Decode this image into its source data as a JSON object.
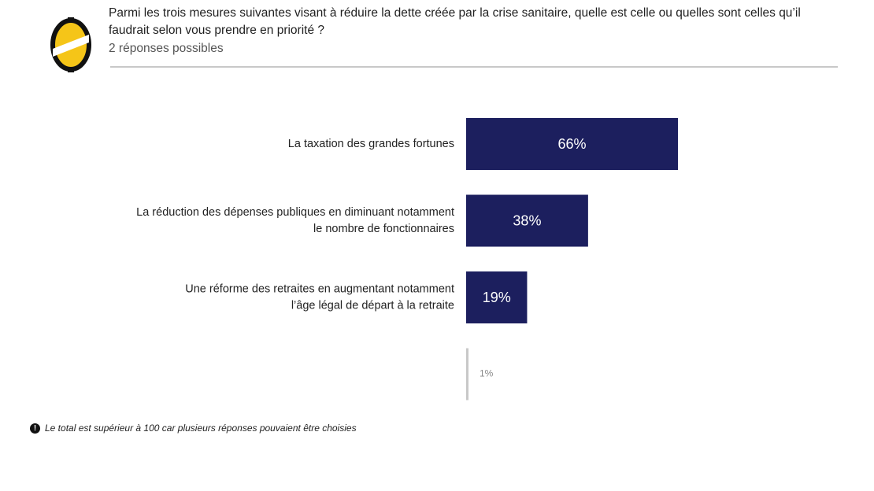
{
  "header": {
    "question": "Parmi les trois mesures suivantes visant à réduire la dette créée par la crise sanitaire, quelle est celle ou quelles sont celles qu’il faudrait selon vous prendre en priorité ?",
    "subtitle": "2 réponses possibles"
  },
  "colors": {
    "bar": "#1c1f5e",
    "bar_label": "#ffffff",
    "minor_bar": "#c8c8c8",
    "minor_label": "#888888",
    "logo_yellow": "#f5c518",
    "logo_black": "#111111"
  },
  "chart_data": {
    "type": "bar",
    "orientation": "horizontal",
    "categories": [
      [
        "La taxation des grandes fortunes"
      ],
      [
        "La réduction des dépenses publiques en diminuant notamment",
        "le nombre de fonctionnaires"
      ],
      [
        "Une réforme des retraites en augmentant notamment",
        "l’âge légal de départ à la retraite"
      ],
      [
        ""
      ]
    ],
    "values": [
      66,
      38,
      19,
      1
    ],
    "value_labels": [
      "66%",
      "38%",
      "19%",
      "1%"
    ],
    "unit": "%",
    "xlim": [
      0,
      100
    ],
    "grid": false,
    "legend": "none"
  },
  "footnote": {
    "icon": "info-circle-icon",
    "text": "Le total est supérieur à 100 car plusieurs réponses pouvaient être choisies"
  }
}
